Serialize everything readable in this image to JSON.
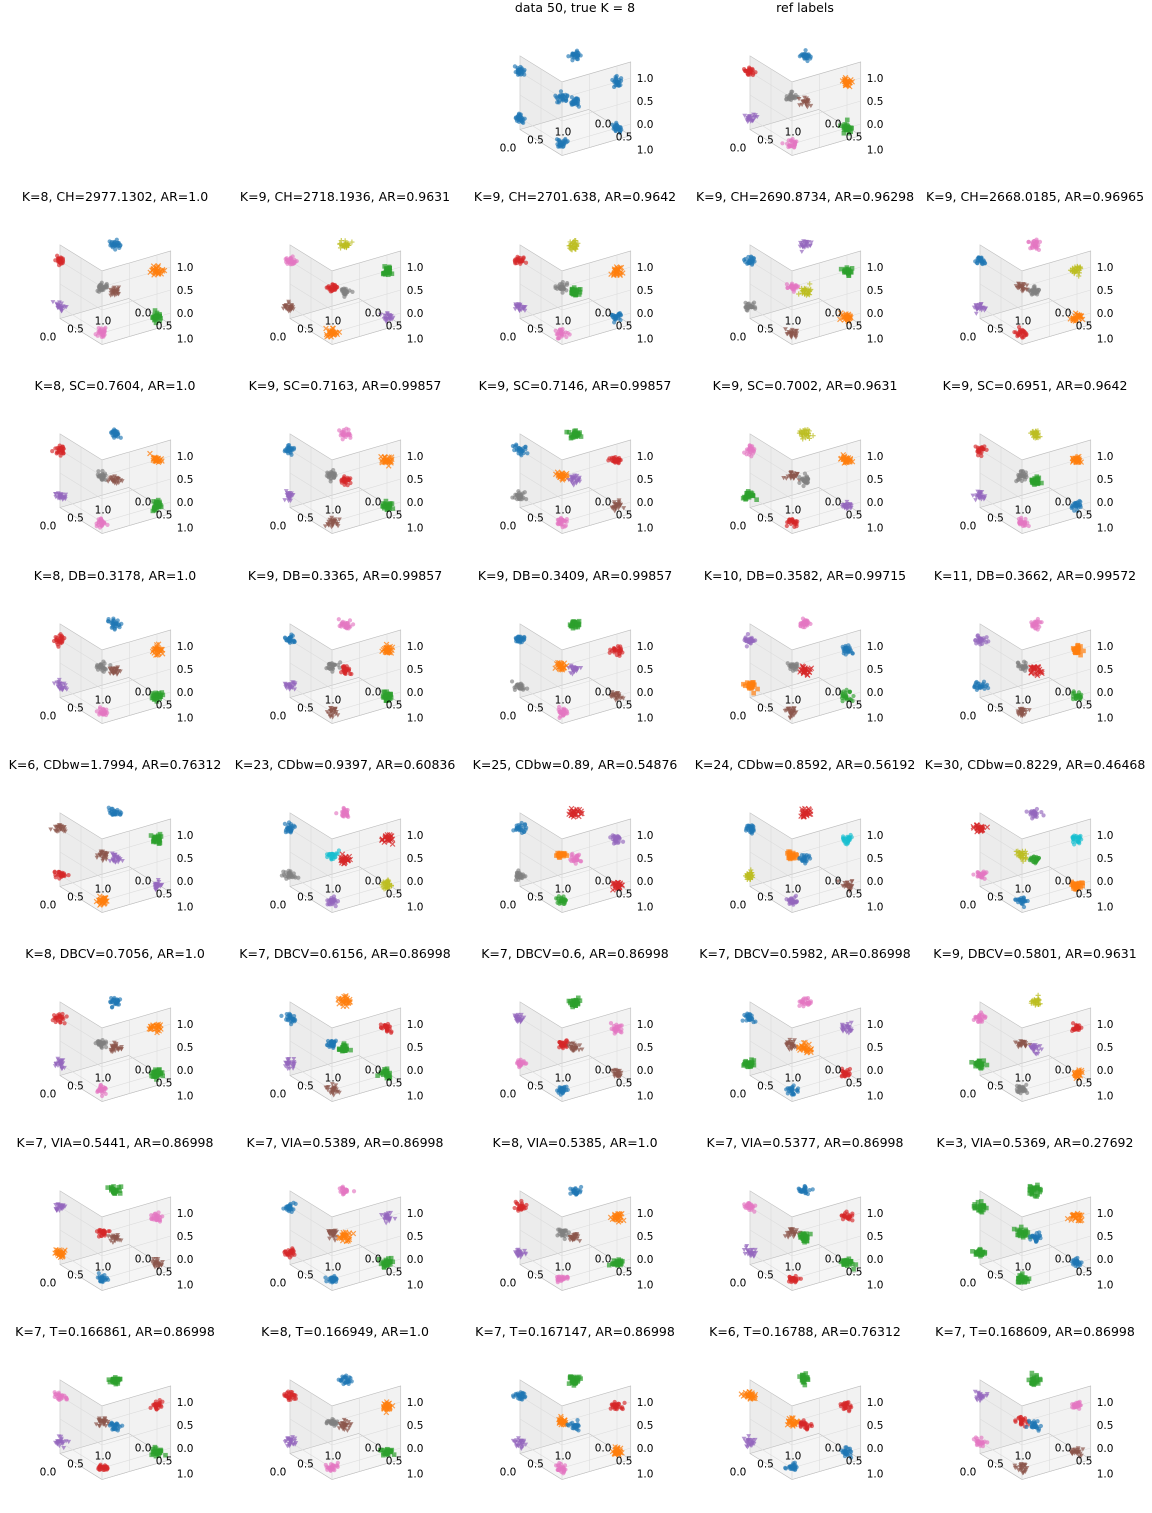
{
  "chart_data": {
    "type": "scatter",
    "layout": {
      "rows": 8,
      "cols": 5
    },
    "axes": {
      "x_ticks": [
        "0.0",
        "0.5",
        "1.0"
      ],
      "y_ticks": [
        "0.0",
        "0.5",
        "1.0"
      ],
      "z_ticks": [
        "0.0",
        "0.5",
        "1.0"
      ],
      "xlim": [
        0,
        1
      ],
      "ylim": [
        0,
        1
      ],
      "zlim": [
        0,
        1
      ],
      "grid": true
    },
    "palette": [
      "#1f77b4",
      "#ff7f0e",
      "#2ca02c",
      "#d62728",
      "#9467bd",
      "#8c564b",
      "#e377c2",
      "#7f7f7f",
      "#bcbd22",
      "#17becf"
    ],
    "panels": [
      {
        "row": 0,
        "col": 2,
        "title": "data 50, true K = 8",
        "k": 1,
        "perm": [
          0,
          0,
          0,
          0,
          0,
          0,
          0,
          0
        ]
      },
      {
        "row": 0,
        "col": 3,
        "title": "ref labels",
        "k": 8,
        "perm": [
          3,
          7,
          0,
          1,
          4,
          6,
          5,
          2
        ]
      },
      {
        "row": 1,
        "col": 0,
        "title": "K=8, CH=2977.1302, AR=1.0",
        "k": 8,
        "perm": [
          3,
          7,
          0,
          1,
          4,
          6,
          5,
          2
        ]
      },
      {
        "row": 1,
        "col": 1,
        "title": "K=9, CH=2718.1936, AR=0.9631",
        "k": 9,
        "perm": [
          6,
          3,
          8,
          2,
          5,
          1,
          7,
          4
        ]
      },
      {
        "row": 1,
        "col": 2,
        "title": "K=9, CH=2701.638, AR=0.9642",
        "k": 9,
        "perm": [
          3,
          7,
          8,
          1,
          4,
          6,
          2,
          0
        ]
      },
      {
        "row": 1,
        "col": 3,
        "title": "K=9, CH=2690.8734, AR=0.96298",
        "k": 9,
        "perm": [
          0,
          6,
          4,
          2,
          7,
          5,
          8,
          1
        ]
      },
      {
        "row": 1,
        "col": 4,
        "title": "K=9, CH=2668.0185, AR=0.96965",
        "k": 9,
        "perm": [
          0,
          5,
          6,
          8,
          4,
          3,
          7,
          1
        ]
      },
      {
        "row": 2,
        "col": 0,
        "title": "K=8, SC=0.7604, AR=1.0",
        "k": 8,
        "perm": [
          3,
          7,
          0,
          1,
          4,
          6,
          5,
          2
        ]
      },
      {
        "row": 2,
        "col": 1,
        "title": "K=9, SC=0.7163, AR=0.99857",
        "k": 9,
        "perm": [
          0,
          7,
          6,
          1,
          4,
          5,
          3,
          2
        ]
      },
      {
        "row": 2,
        "col": 2,
        "title": "K=9, SC=0.7146, AR=0.99857",
        "k": 9,
        "perm": [
          0,
          1,
          2,
          3,
          7,
          6,
          4,
          5
        ]
      },
      {
        "row": 2,
        "col": 3,
        "title": "K=9, SC=0.7002, AR=0.9631",
        "k": 9,
        "perm": [
          6,
          5,
          8,
          1,
          2,
          3,
          7,
          4
        ]
      },
      {
        "row": 2,
        "col": 4,
        "title": "K=9, SC=0.6951, AR=0.9642",
        "k": 9,
        "perm": [
          3,
          7,
          8,
          1,
          4,
          6,
          2,
          0
        ]
      },
      {
        "row": 3,
        "col": 0,
        "title": "K=8, DB=0.3178, AR=1.0",
        "k": 8,
        "perm": [
          3,
          7,
          0,
          1,
          4,
          6,
          5,
          2
        ]
      },
      {
        "row": 3,
        "col": 1,
        "title": "K=9, DB=0.3365, AR=0.99857",
        "k": 9,
        "perm": [
          0,
          7,
          6,
          1,
          4,
          5,
          3,
          2
        ]
      },
      {
        "row": 3,
        "col": 2,
        "title": "K=9, DB=0.3409, AR=0.99857",
        "k": 9,
        "perm": [
          0,
          1,
          2,
          3,
          7,
          6,
          4,
          5
        ]
      },
      {
        "row": 3,
        "col": 3,
        "title": "K=10, DB=0.3582, AR=0.99715",
        "k": 10,
        "perm": [
          4,
          7,
          6,
          0,
          1,
          5,
          3,
          2
        ]
      },
      {
        "row": 3,
        "col": 4,
        "title": "K=11, DB=0.3662, AR=0.99572",
        "k": 11,
        "perm": [
          4,
          7,
          6,
          1,
          0,
          5,
          3,
          2
        ]
      },
      {
        "row": 4,
        "col": 0,
        "title": "K=6, CDbw=1.7994, AR=0.76312",
        "k": 6,
        "perm": [
          5,
          5,
          0,
          2,
          3,
          1,
          4,
          4
        ]
      },
      {
        "row": 4,
        "col": 1,
        "title": "K=23, CDbw=0.9397, AR=0.60836",
        "k": 23,
        "perm": [
          0,
          9,
          6,
          3,
          7,
          4,
          3,
          8
        ]
      },
      {
        "row": 4,
        "col": 2,
        "title": "K=25, CDbw=0.89, AR=0.54876",
        "k": 25,
        "perm": [
          0,
          1,
          3,
          4,
          7,
          2,
          6,
          3
        ]
      },
      {
        "row": 4,
        "col": 3,
        "title": "K=24, CDbw=0.8592, AR=0.56192",
        "k": 24,
        "perm": [
          0,
          1,
          3,
          9,
          8,
          4,
          0,
          5
        ]
      },
      {
        "row": 4,
        "col": 4,
        "title": "K=30, CDbw=0.8229, AR=0.46468",
        "k": 30,
        "perm": [
          3,
          8,
          4,
          9,
          6,
          0,
          2,
          1
        ]
      },
      {
        "row": 5,
        "col": 0,
        "title": "K=8, DBCV=0.7056, AR=1.0",
        "k": 8,
        "perm": [
          3,
          7,
          0,
          1,
          4,
          6,
          5,
          2
        ]
      },
      {
        "row": 5,
        "col": 1,
        "title": "K=7, DBCV=0.6156, AR=0.86998",
        "k": 7,
        "perm": [
          0,
          0,
          1,
          3,
          4,
          5,
          2,
          2
        ]
      },
      {
        "row": 5,
        "col": 2,
        "title": "K=7, DBCV=0.6, AR=0.86998",
        "k": 7,
        "perm": [
          4,
          3,
          2,
          6,
          6,
          0,
          5,
          5
        ]
      },
      {
        "row": 5,
        "col": 3,
        "title": "K=7, DBCV=0.5982, AR=0.86998",
        "k": 7,
        "perm": [
          0,
          5,
          6,
          4,
          2,
          0,
          1,
          3
        ]
      },
      {
        "row": 5,
        "col": 4,
        "title": "K=9, DBCV=0.5801, AR=0.9631",
        "k": 9,
        "perm": [
          6,
          5,
          8,
          3,
          2,
          7,
          4,
          1
        ]
      },
      {
        "row": 6,
        "col": 0,
        "title": "K=7, VIA=0.5441, AR=0.86998",
        "k": 7,
        "perm": [
          4,
          3,
          2,
          6,
          1,
          0,
          5,
          5
        ]
      },
      {
        "row": 6,
        "col": 1,
        "title": "K=7, VIA=0.5389, AR=0.86998",
        "k": 7,
        "perm": [
          0,
          5,
          6,
          4,
          3,
          0,
          1,
          2
        ]
      },
      {
        "row": 6,
        "col": 2,
        "title": "K=8, VIA=0.5385, AR=1.0",
        "k": 8,
        "perm": [
          3,
          7,
          0,
          1,
          4,
          6,
          5,
          2
        ]
      },
      {
        "row": 6,
        "col": 3,
        "title": "K=7, VIA=0.5377, AR=0.86998",
        "k": 7,
        "perm": [
          6,
          5,
          0,
          3,
          4,
          3,
          2,
          2
        ]
      },
      {
        "row": 6,
        "col": 4,
        "title": "K=3, VIA=0.5369, AR=0.27692",
        "k": 3,
        "perm": [
          2,
          2,
          2,
          1,
          2,
          2,
          0,
          0
        ]
      },
      {
        "row": 7,
        "col": 0,
        "title": "K=7, T=0.166861, AR=0.86998",
        "k": 7,
        "perm": [
          6,
          5,
          2,
          3,
          4,
          3,
          0,
          2
        ]
      },
      {
        "row": 7,
        "col": 1,
        "title": "K=8, T=0.166949, AR=1.0",
        "k": 8,
        "perm": [
          3,
          7,
          0,
          1,
          4,
          6,
          5,
          2
        ]
      },
      {
        "row": 7,
        "col": 2,
        "title": "K=7, T=0.167147, AR=0.86998",
        "k": 7,
        "perm": [
          0,
          1,
          2,
          3,
          4,
          6,
          0,
          1
        ]
      },
      {
        "row": 7,
        "col": 3,
        "title": "K=6, T=0.16788, AR=0.76312",
        "k": 6,
        "perm": [
          1,
          1,
          2,
          3,
          4,
          0,
          3,
          0
        ]
      },
      {
        "row": 7,
        "col": 4,
        "title": "K=7, T=0.168609, AR=0.86998",
        "k": 7,
        "perm": [
          4,
          3,
          2,
          6,
          6,
          5,
          0,
          5
        ]
      }
    ]
  }
}
